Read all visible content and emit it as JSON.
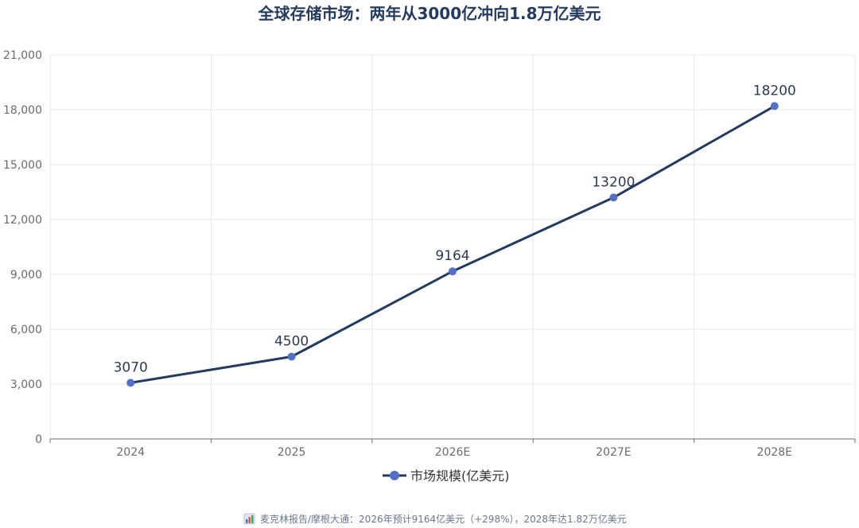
{
  "chart_data": {
    "type": "line",
    "title": "全球存储市场：两年从3000亿冲向1.8万亿美元",
    "categories": [
      "2024",
      "2025",
      "2026E",
      "2027E",
      "2028E"
    ],
    "series": [
      {
        "name": "市场规模(亿美元)",
        "values": [
          3070,
          4500,
          9164,
          13200,
          18200
        ],
        "color": "#243a5e",
        "marker_color": "#5470c6"
      }
    ],
    "data_labels": [
      "3070",
      "4500",
      "9164",
      "13200",
      "18200"
    ],
    "y_ticks": [
      "0",
      "3,000",
      "6,000",
      "9,000",
      "12,000",
      "15,000",
      "18,000",
      "21,000"
    ],
    "ylim": [
      0,
      21000
    ],
    "grid": true,
    "legend_position": "bottom-center",
    "footer": {
      "icon": "bar-chart-icon",
      "text": "麦克林报告/摩根大通：2026年预计9164亿美元（+298%），2028年达1.82万亿美元"
    }
  },
  "colors": {
    "line": "#243a5e",
    "marker": "#5470c6",
    "grid": "#e3e7ef",
    "axis": "#6e7079"
  }
}
